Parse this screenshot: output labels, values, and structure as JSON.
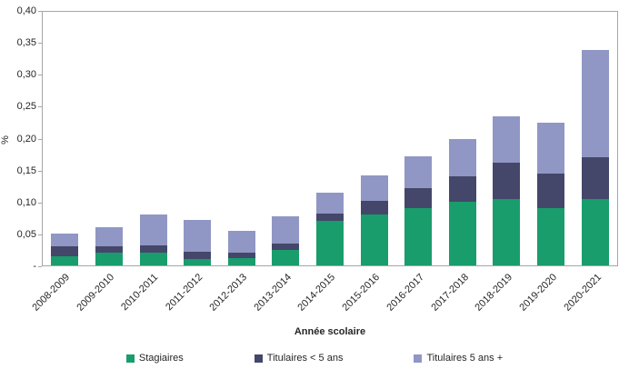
{
  "chart_data": {
    "type": "bar",
    "stacked": true,
    "title": "",
    "xlabel": "Année scolaire",
    "ylabel": "%",
    "ylim": [
      0,
      0.4
    ],
    "grid": false,
    "legend_position": "bottom",
    "categories": [
      "2008-2009",
      "2009-2010",
      "2010-2011",
      "2011-2012",
      "2012-2013",
      "2013-2014",
      "2014-2015",
      "2015-2016",
      "2016-2017",
      "2017-2018",
      "2018-2019",
      "2019-2020",
      "2020-2021"
    ],
    "series": [
      {
        "name": "Stagiaires",
        "color": "#199d6c",
        "values": [
          0.015,
          0.02,
          0.02,
          0.01,
          0.012,
          0.025,
          0.07,
          0.08,
          0.09,
          0.1,
          0.105,
          0.09,
          0.105
        ]
      },
      {
        "name": "Titulaires < 5 ans",
        "color": "#44476a",
        "values": [
          0.015,
          0.01,
          0.012,
          0.012,
          0.008,
          0.01,
          0.012,
          0.022,
          0.032,
          0.04,
          0.057,
          0.055,
          0.065
        ]
      },
      {
        "name": "Titulaires 5 ans +",
        "color": "#9097c5",
        "values": [
          0.02,
          0.03,
          0.048,
          0.05,
          0.035,
          0.042,
          0.033,
          0.04,
          0.05,
          0.06,
          0.073,
          0.08,
          0.17
        ]
      }
    ],
    "yticks": [
      {
        "label": "0,40",
        "value": 0.4
      },
      {
        "label": "0,35",
        "value": 0.35
      },
      {
        "label": "0,30",
        "value": 0.3
      },
      {
        "label": "0,25",
        "value": 0.25
      },
      {
        "label": "0,20",
        "value": 0.2
      },
      {
        "label": "0,15",
        "value": 0.15
      },
      {
        "label": "0,10",
        "value": 0.1
      },
      {
        "label": "0,05",
        "value": 0.05
      },
      {
        "label": "-",
        "value": 0
      }
    ]
  }
}
